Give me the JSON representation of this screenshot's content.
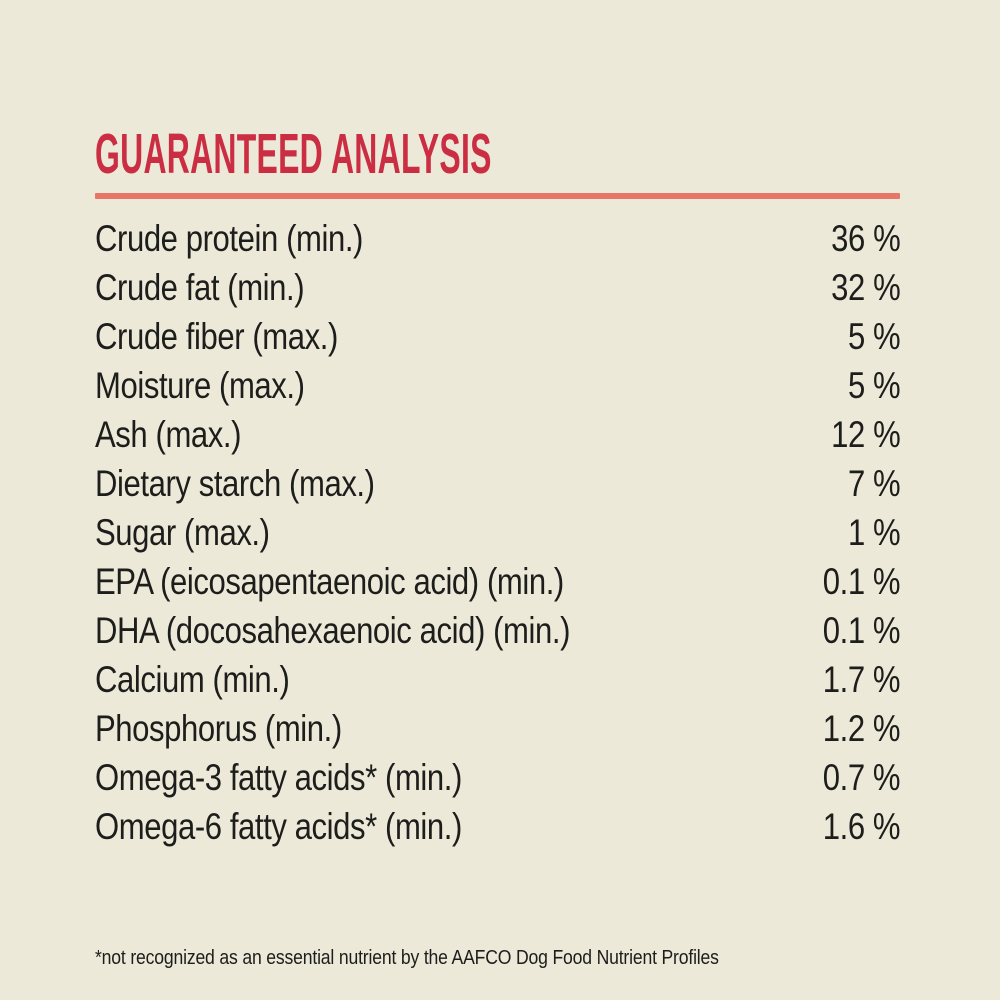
{
  "panel": {
    "title": "GUARANTEED ANALYSIS",
    "footnote": "*not recognized as an essential nutrient by the AAFCO Dog Food Nutrient Profiles"
  },
  "colors": {
    "background": "#ECE9D9",
    "heading_red": "#CB2E43",
    "divider_salmon": "#E87668",
    "text": "#1D1D1B"
  },
  "table": {
    "rows": [
      {
        "label": "Crude protein (min.)",
        "value": "36 %"
      },
      {
        "label": "Crude fat (min.)",
        "value": "32 %"
      },
      {
        "label": "Crude fiber (max.)",
        "value": "5 %"
      },
      {
        "label": "Moisture (max.)",
        "value": "5 %"
      },
      {
        "label": "Ash (max.)",
        "value": "12 %"
      },
      {
        "label": "Dietary starch (max.)",
        "value": "7 %"
      },
      {
        "label": "Sugar (max.)",
        "value": "1 %"
      },
      {
        "label": "EPA (eicosapentaenoic acid) (min.)",
        "value": "0.1 %"
      },
      {
        "label": "DHA (docosahexaenoic acid) (min.)",
        "value": "0.1 %"
      },
      {
        "label": "Calcium (min.)",
        "value": "1.7 %"
      },
      {
        "label": "Phosphorus (min.)",
        "value": "1.2 %"
      },
      {
        "label": "Omega-3 fatty acids* (min.)",
        "value": "0.7 %"
      },
      {
        "label": "Omega-6 fatty acids* (min.)",
        "value": "1.6 %"
      }
    ]
  }
}
